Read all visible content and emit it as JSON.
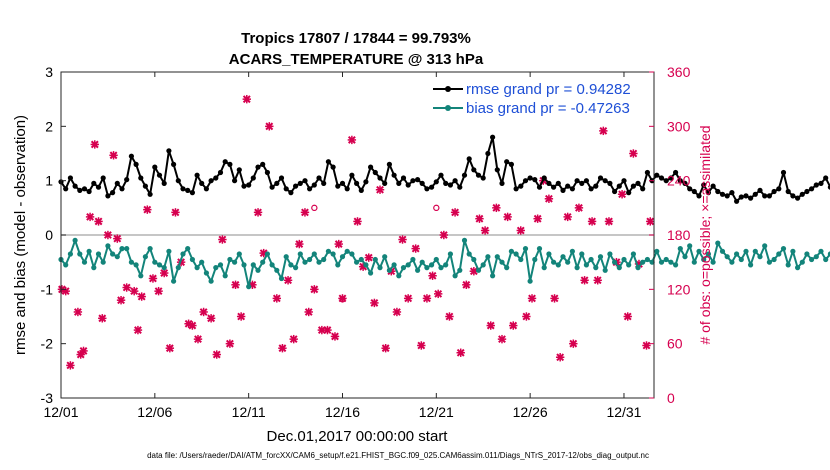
{
  "chart_data": {
    "type": "line",
    "title": "Tropics 17807 / 17844 = 99.793%",
    "subtitle": "ACARS_TEMPERATURE @ 313 hPa",
    "xlabel": "Dec.01,2017 00:00:00 start",
    "ylabel": "rmse and bias (model - observation)",
    "ylabel_right": "# of obs: o=possible; ×=assimilated",
    "footer": "data file: /Users/raeder/DAI/ATM_forcXX/CAM6_setup/f.e21.FHIST_BGC.f09_025.CAM6assim.011/Diags_NTrS_2017-12/obs_diag_output.nc",
    "xlim": [
      0,
      31.6
    ],
    "ylim": [
      -3,
      3
    ],
    "ylim_right": [
      0,
      360
    ],
    "x_ticks": [
      0,
      5,
      10,
      15,
      20,
      25,
      30
    ],
    "x_tick_labels": [
      "12/01",
      "12/06",
      "12/11",
      "12/16",
      "12/21",
      "12/26",
      "12/31"
    ],
    "y_ticks": [
      -3,
      -2,
      -1,
      0,
      1,
      2,
      3
    ],
    "y_tick_labels": [
      "-3",
      "-2",
      "-1",
      "0",
      "1",
      "2",
      "3"
    ],
    "y_right_ticks": [
      0,
      60,
      120,
      180,
      240,
      300,
      360
    ],
    "y_right_tick_labels": [
      "0",
      "60",
      "120",
      "180",
      "240",
      "300",
      "360"
    ],
    "legend_position": "top-right",
    "x_step_days": 0.25,
    "series": [
      {
        "name": "rmse grand pr = 0.94282",
        "color": "#000000",
        "axis": "left",
        "values": [
          0.98,
          0.85,
          1.05,
          0.9,
          0.82,
          0.85,
          0.8,
          0.95,
          0.88,
          1.05,
          0.72,
          0.78,
          0.95,
          0.85,
          1.02,
          1.45,
          1.3,
          1.05,
          0.9,
          0.75,
          1.25,
          1.1,
          0.95,
          1.55,
          1.3,
          1.0,
          0.85,
          0.82,
          0.78,
          1.1,
          0.95,
          0.85,
          1.0,
          1.05,
          1.15,
          1.35,
          1.3,
          1.0,
          1.2,
          0.9,
          0.92,
          1.05,
          1.25,
          1.3,
          1.15,
          0.88,
          0.95,
          1.05,
          0.85,
          0.78,
          0.9,
          0.95,
          1.0,
          0.85,
          0.92,
          1.05,
          0.95,
          1.35,
          1.25,
          0.9,
          0.95,
          0.85,
          1.1,
          0.95,
          0.82,
          0.98,
          1.25,
          1.15,
          1.05,
          0.95,
          1.3,
          1.1,
          0.95,
          1.05,
          0.92,
          1.0,
          1.02,
          0.95,
          0.85,
          0.88,
          0.98,
          1.1,
          0.95,
          0.92,
          1.0,
          0.88,
          1.1,
          1.4,
          1.2,
          1.1,
          1.05,
          1.5,
          1.8,
          1.2,
          0.95,
          1.35,
          1.3,
          0.85,
          0.9,
          1.0,
          1.05,
          1.02,
          0.88,
          1.05,
          0.95,
          0.88,
          0.95,
          0.82,
          0.9,
          0.85,
          1.0,
          0.95,
          1.0,
          0.85,
          0.9,
          1.05,
          1.0,
          0.95,
          0.8,
          0.9,
          1.0,
          0.78,
          0.9,
          0.95,
          0.85,
          1.15,
          1.0,
          1.1,
          1.05,
          1.0,
          1.05,
          1.15,
          1.0,
          0.95,
          0.85,
          0.8,
          0.72,
          0.92,
          0.78,
          0.9,
          0.8,
          0.75,
          0.72,
          0.78,
          0.62,
          0.7,
          0.72,
          0.68,
          0.75,
          0.82,
          0.72,
          0.72,
          0.8,
          0.85,
          1.15,
          0.8,
          0.72,
          0.68,
          0.75,
          0.8,
          0.85,
          0.92,
          0.95,
          1.05,
          0.88,
          0.8,
          1.1,
          1.02,
          0.9,
          0.78,
          0.75,
          0.92,
          0.68,
          0.75,
          0.72,
          0.88,
          0.92,
          0.8,
          0.85,
          0.75,
          0.92,
          0.95,
          0.9,
          0.8,
          0.95,
          0.88,
          0.82,
          0.95,
          0.9,
          0.82,
          0.78,
          0.95,
          0.88,
          1.1,
          1.35,
          0.95,
          0.8,
          1.15,
          1.0,
          0.85,
          1.25,
          0.85,
          0.9,
          0.95,
          0.85,
          0.88,
          0.82,
          0.9,
          0.92,
          1.02,
          0.95,
          1.0,
          0.9,
          0.8,
          0.75,
          0.72,
          0.8
        ]
      },
      {
        "name": "bias grand pr = -0.47263",
        "color": "#13847a",
        "axis": "left",
        "values": [
          -0.45,
          -0.55,
          -0.35,
          -0.1,
          -0.35,
          -0.5,
          -0.3,
          -0.6,
          -0.35,
          -0.5,
          -0.2,
          -0.35,
          -0.4,
          -0.25,
          -0.25,
          -0.5,
          -0.55,
          -0.75,
          -0.4,
          -0.25,
          -0.5,
          -0.55,
          -0.6,
          -0.3,
          -0.85,
          -0.6,
          -0.35,
          -0.25,
          -0.45,
          -0.6,
          -0.5,
          -0.7,
          -0.85,
          -0.6,
          -0.55,
          -0.75,
          -0.45,
          -0.5,
          -0.35,
          -0.55,
          -0.95,
          -0.55,
          -0.65,
          -0.5,
          -0.35,
          -0.55,
          -0.65,
          -0.8,
          -0.4,
          -0.55,
          -0.6,
          -0.35,
          -0.5,
          -0.45,
          -0.35,
          -0.5,
          -0.45,
          -0.3,
          -0.35,
          -0.55,
          -0.4,
          -0.3,
          -0.35,
          -0.5,
          -0.45,
          -0.55,
          -0.7,
          -0.45,
          -0.6,
          -0.4,
          -0.65,
          -0.55,
          -0.75,
          -0.6,
          -0.55,
          -0.45,
          -0.65,
          -0.5,
          -0.6,
          -0.55,
          -0.45,
          -0.6,
          -0.55,
          -0.35,
          -0.75,
          -0.65,
          -0.1,
          -0.35,
          -0.45,
          -0.65,
          -0.55,
          -0.4,
          -0.75,
          -0.4,
          -0.5,
          -0.6,
          -0.3,
          -0.35,
          -0.45,
          -0.25,
          -0.85,
          -0.45,
          -0.25,
          -0.6,
          -0.35,
          -0.5,
          -0.55,
          -0.4,
          -0.5,
          -0.3,
          -0.6,
          -0.35,
          -0.55,
          -0.45,
          -0.6,
          -0.4,
          -0.65,
          -0.35,
          -0.5,
          -0.6,
          -0.45,
          -0.55,
          -0.35,
          -0.6,
          -0.5,
          -0.45,
          -0.5,
          -0.3,
          -0.5,
          -0.45,
          -0.5,
          -0.55,
          -0.25,
          -0.4,
          -0.2,
          -0.5,
          -0.3,
          -0.45,
          -0.35,
          -0.5,
          -0.15,
          -0.3,
          -0.4,
          -0.5,
          -0.35,
          -0.45,
          -0.3,
          -0.55,
          -0.3,
          -0.4,
          -0.2,
          -0.5,
          -0.45,
          -0.35,
          -0.25,
          -0.55,
          -0.3,
          -0.6,
          -0.5,
          -0.35,
          -0.45,
          -0.4,
          -0.3,
          -0.45,
          -0.35,
          -0.4,
          -0.4,
          -0.3,
          -0.25,
          -0.5,
          -0.3,
          -0.45,
          -0.35,
          -0.2,
          -0.3,
          -0.25,
          -0.35,
          -0.3,
          -0.25,
          -0.35,
          -0.45,
          -0.2,
          -0.3,
          -0.35,
          -0.2,
          -0.25,
          -0.15,
          -0.3,
          -0.4,
          -0.25,
          -0.2,
          -0.35,
          -0.3,
          -0.4,
          -0.25,
          -0.3,
          -0.45,
          -0.35,
          -0.15,
          -0.5,
          -0.4,
          -0.3,
          -0.35,
          -0.5,
          -0.2,
          -0.3,
          -0.45,
          -0.4,
          -0.2,
          -0.45,
          -0.65,
          -0.35,
          -0.55,
          -0.4,
          -0.3,
          -0.45,
          -0.35,
          -0.2
        ]
      }
    ],
    "obs_assimilated": {
      "name": "assimilated",
      "marker": "x",
      "color": "#d6004f",
      "axis": "right",
      "x": [
        0.05,
        0.25,
        0.5,
        0.9,
        1.05,
        1.2,
        1.55,
        1.8,
        2.0,
        2.2,
        2.5,
        2.8,
        3.0,
        3.2,
        3.5,
        3.9,
        4.1,
        4.3,
        4.6,
        4.9,
        5.2,
        5.5,
        5.8,
        6.1,
        6.4,
        6.8,
        7.0,
        7.3,
        7.6,
        8.0,
        8.3,
        8.6,
        9.0,
        9.3,
        9.6,
        9.9,
        10.2,
        10.5,
        10.8,
        11.1,
        11.5,
        11.8,
        12.1,
        12.4,
        12.7,
        13.0,
        13.2,
        13.5,
        13.9,
        14.2,
        14.6,
        14.8,
        15.0,
        15.5,
        15.8,
        16.1,
        16.4,
        16.7,
        17.0,
        17.3,
        17.6,
        17.9,
        18.2,
        18.5,
        18.9,
        19.2,
        19.5,
        19.8,
        20.1,
        20.4,
        20.7,
        21.0,
        21.3,
        21.6,
        22.0,
        22.3,
        22.6,
        22.9,
        23.2,
        23.5,
        23.8,
        24.1,
        24.5,
        24.8,
        25.1,
        25.4,
        25.7,
        26.0,
        26.3,
        26.6,
        27.0,
        27.3,
        27.6,
        27.9,
        28.3,
        28.6,
        28.9,
        29.2,
        29.6,
        29.9,
        30.2,
        30.5,
        30.8,
        31.2,
        31.4
      ],
      "values": [
        120,
        118,
        36,
        95,
        48,
        52,
        200,
        280,
        195,
        88,
        180,
        268,
        176,
        108,
        122,
        118,
        75,
        112,
        208,
        132,
        118,
        138,
        55,
        205,
        150,
        82,
        80,
        65,
        95,
        88,
        48,
        175,
        60,
        125,
        90,
        330,
        125,
        205,
        160,
        300,
        110,
        55,
        130,
        65,
        170,
        205,
        95,
        120,
        75,
        75,
        68,
        170,
        110,
        285,
        195,
        145,
        155,
        105,
        230,
        55,
        140,
        95,
        175,
        110,
        165,
        58,
        110,
        135,
        115,
        180,
        90,
        205,
        50,
        125,
        140,
        198,
        185,
        80,
        210,
        65,
        200,
        80,
        185,
        90,
        110,
        198,
        240,
        220,
        110,
        45,
        200,
        60,
        210,
        130,
        195,
        130,
        295,
        195,
        150,
        225,
        90,
        270,
        148,
        58,
        195
      ]
    },
    "obs_possible": {
      "name": "possible",
      "marker": "o",
      "color": "#d6004f",
      "axis": "right",
      "x": [
        13.5,
        15.0,
        20.0
      ],
      "values": [
        210,
        109,
        210
      ]
    }
  }
}
